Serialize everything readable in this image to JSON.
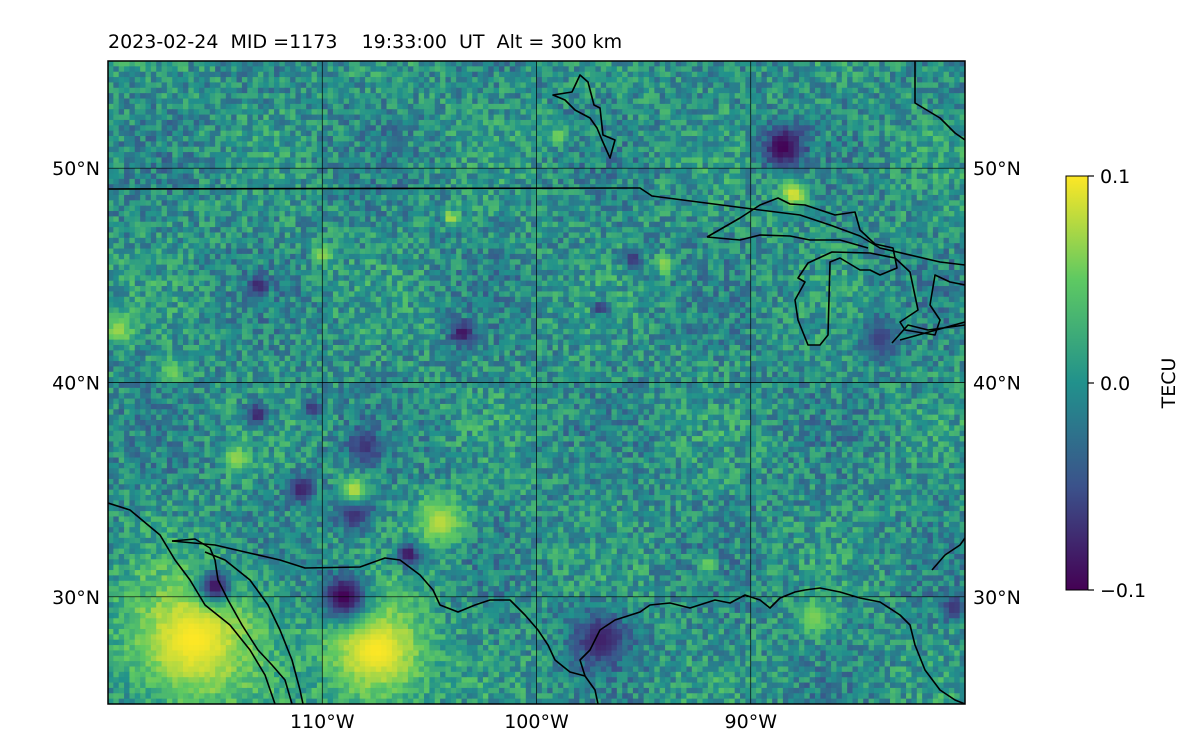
{
  "chart_data": {
    "type": "heatmap",
    "title": "2023-02-24  MID =1173    19:33:00  UT  Alt = 300 km",
    "map": {
      "lon_range": [
        -120,
        -80
      ],
      "lat_range": [
        25,
        55
      ],
      "lat_ticks": [
        {
          "value": 30,
          "label": "30°N"
        },
        {
          "value": 40,
          "label": "40°N"
        },
        {
          "value": 50,
          "label": "50°N"
        }
      ],
      "lon_ticks": [
        {
          "value": -110,
          "label": "110°W"
        },
        {
          "value": -100,
          "label": "100°W"
        },
        {
          "value": -90,
          "label": "90°W"
        }
      ],
      "grid": true,
      "coastlines": true,
      "borders": true
    },
    "colorbar": {
      "label": "TECU",
      "vmin": -0.1,
      "vmax": 0.1,
      "ticks": [
        {
          "value": 0.1,
          "label": "0.1"
        },
        {
          "value": 0.0,
          "label": "0.0"
        },
        {
          "value": -0.1,
          "label": "−0.1"
        }
      ],
      "colormap": "viridis",
      "stops": [
        "#440154",
        "#3b528b",
        "#21918c",
        "#5ec962",
        "#fde725"
      ]
    },
    "background_value": 0.0,
    "features": [
      {
        "lon": -116.0,
        "lat": 28.0,
        "value": 0.1,
        "r": 2.8
      },
      {
        "lon": -107.5,
        "lat": 27.5,
        "value": 0.1,
        "r": 2.2
      },
      {
        "lon": -104.5,
        "lat": 33.5,
        "value": 0.08,
        "r": 1.0
      },
      {
        "lon": -109.0,
        "lat": 30.0,
        "value": -0.1,
        "r": 1.0
      },
      {
        "lon": -115.0,
        "lat": 30.5,
        "value": -0.09,
        "r": 0.7
      },
      {
        "lon": -97.0,
        "lat": 28.0,
        "value": -0.08,
        "r": 1.2
      },
      {
        "lon": -88.5,
        "lat": 51.0,
        "value": -0.1,
        "r": 0.9
      },
      {
        "lon": -88.0,
        "lat": 48.8,
        "value": 0.09,
        "r": 0.6
      },
      {
        "lon": -108.5,
        "lat": 34.0,
        "value": -0.08,
        "r": 0.8
      },
      {
        "lon": -111.0,
        "lat": 35.0,
        "value": -0.08,
        "r": 0.6
      },
      {
        "lon": -108.0,
        "lat": 37.0,
        "value": -0.07,
        "r": 0.7
      },
      {
        "lon": -103.5,
        "lat": 42.3,
        "value": -0.09,
        "r": 0.5
      },
      {
        "lon": -106.0,
        "lat": 32.0,
        "value": -0.09,
        "r": 0.5
      },
      {
        "lon": -108.5,
        "lat": 35.0,
        "value": 0.08,
        "r": 0.6
      },
      {
        "lon": -87.0,
        "lat": 29.0,
        "value": 0.06,
        "r": 0.7
      },
      {
        "lon": -119.5,
        "lat": 42.5,
        "value": 0.07,
        "r": 0.6
      },
      {
        "lon": -114.0,
        "lat": 36.5,
        "value": 0.07,
        "r": 0.5
      },
      {
        "lon": -95.5,
        "lat": 45.8,
        "value": -0.07,
        "r": 0.4
      },
      {
        "lon": -80.5,
        "lat": 29.5,
        "value": -0.07,
        "r": 0.5
      },
      {
        "lon": -113.0,
        "lat": 38.5,
        "value": -0.08,
        "r": 0.5
      },
      {
        "lon": -110.5,
        "lat": 38.8,
        "value": -0.07,
        "r": 0.4
      },
      {
        "lon": -110.0,
        "lat": 46.0,
        "value": 0.07,
        "r": 0.4
      },
      {
        "lon": -94.0,
        "lat": 45.5,
        "value": 0.07,
        "r": 0.4
      },
      {
        "lon": -99.0,
        "lat": 51.5,
        "value": 0.06,
        "r": 0.4
      },
      {
        "lon": -84.0,
        "lat": 42.0,
        "value": -0.06,
        "r": 0.8
      },
      {
        "lon": -92.0,
        "lat": 31.5,
        "value": 0.06,
        "r": 0.4
      },
      {
        "lon": -104.0,
        "lat": 47.7,
        "value": 0.08,
        "r": 0.3
      },
      {
        "lon": -113.0,
        "lat": 44.5,
        "value": -0.08,
        "r": 0.4
      },
      {
        "lon": -97.0,
        "lat": 43.5,
        "value": -0.08,
        "r": 0.3
      },
      {
        "lon": -117.0,
        "lat": 40.5,
        "value": 0.06,
        "r": 0.5
      }
    ]
  }
}
